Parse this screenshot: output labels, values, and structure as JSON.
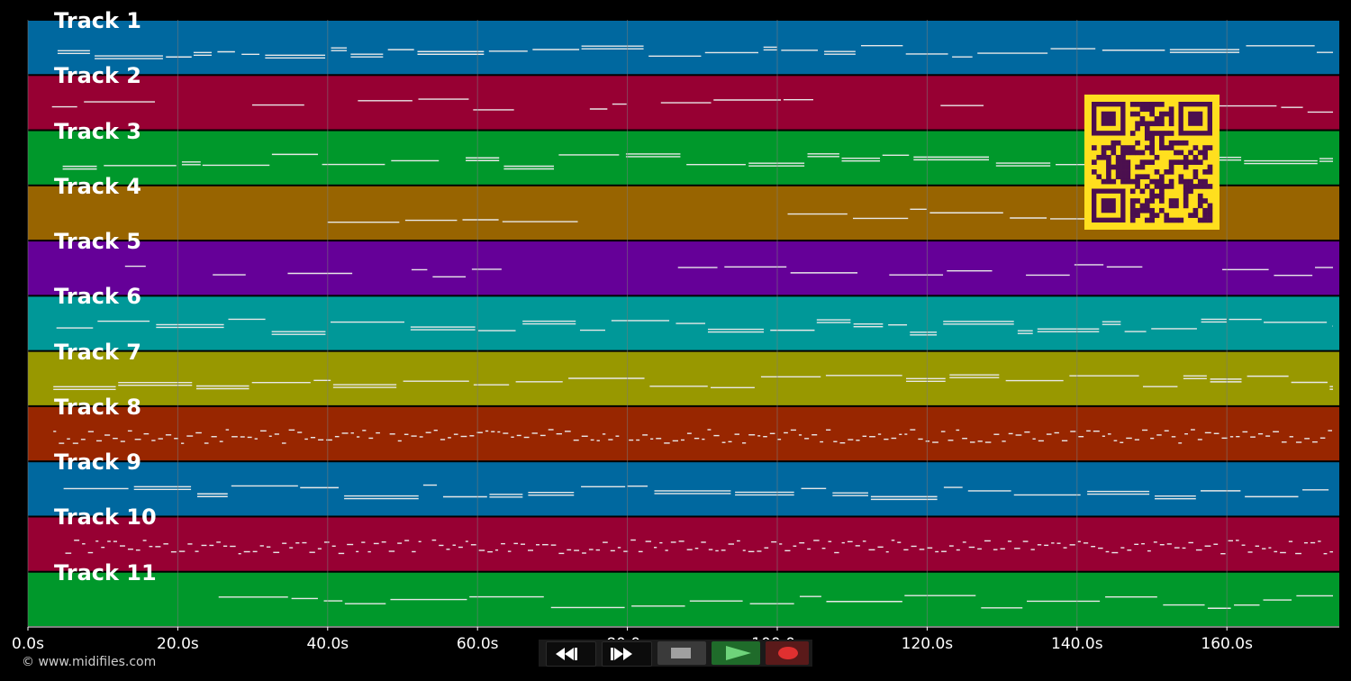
{
  "timeline": {
    "x_unit": "s",
    "x_range": [
      0,
      175
    ],
    "tick_labels": [
      "0.0s",
      "20.0s",
      "40.0s",
      "60.0s",
      "80.0s",
      "100.0s",
      "120.0s",
      "140.0s",
      "160.0s"
    ],
    "tick_values": [
      0,
      20,
      40,
      60,
      80,
      100,
      120,
      140,
      160
    ],
    "grid_color": "#7a7a7a"
  },
  "tracks": [
    {
      "label": "Track 1",
      "color": "#00689f",
      "style": "dense"
    },
    {
      "label": "Track 2",
      "color": "#970033",
      "style": "sparse"
    },
    {
      "label": "Track 3",
      "color": "#00982b",
      "style": "dense"
    },
    {
      "label": "Track 4",
      "color": "#986400",
      "style": "phrases"
    },
    {
      "label": "Track 5",
      "color": "#650098",
      "style": "sparse"
    },
    {
      "label": "Track 6",
      "color": "#009898",
      "style": "dense"
    },
    {
      "label": "Track 7",
      "color": "#989800",
      "style": "dense"
    },
    {
      "label": "Track 8",
      "color": "#982600",
      "style": "dotted"
    },
    {
      "label": "Track 9",
      "color": "#00689f",
      "style": "dense"
    },
    {
      "label": "Track 10",
      "color": "#970033",
      "style": "dotted"
    },
    {
      "label": "Track 11",
      "color": "#00982b",
      "style": "single"
    }
  ],
  "qr_code": {
    "fg": "#4b0f4f",
    "bg": "#ffdf1e"
  },
  "copyright": "© www.midifiles.com",
  "transport": {
    "rewind_icon": "rewind-icon",
    "fast_forward_icon": "fast-forward-icon",
    "stop_icon": "stop-icon",
    "play_icon": "play-icon",
    "record_icon": "record-icon"
  }
}
